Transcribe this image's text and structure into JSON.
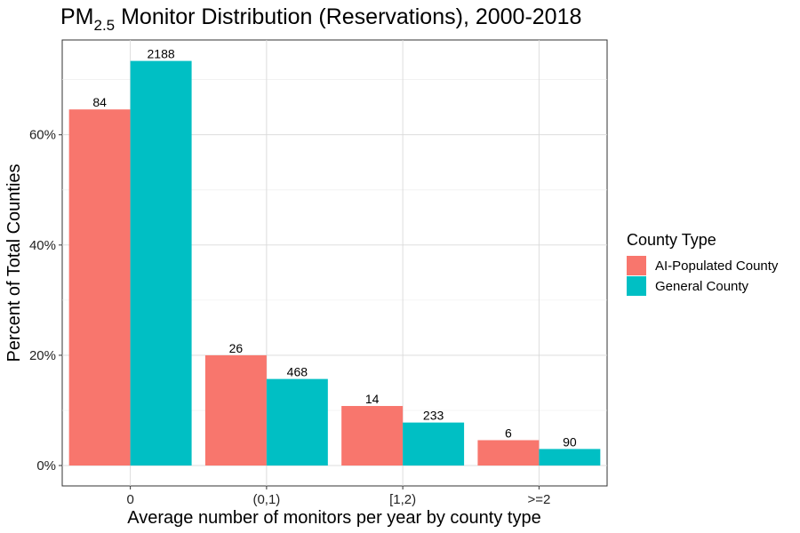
{
  "chart_data": {
    "type": "bar",
    "title_prefix": "PM",
    "title_subscript": "2.5",
    "title_suffix": " Monitor Distribution (Reservations), 2000-2018",
    "xlabel": "Average number of monitors per year by county type",
    "ylabel": "Percent of Total Counties",
    "categories": [
      "0",
      "(0,1)",
      "[1,2)",
      ">=2"
    ],
    "y_ticks": [
      {
        "value": 0,
        "label": "0%"
      },
      {
        "value": 20,
        "label": "20%"
      },
      {
        "value": 40,
        "label": "40%"
      },
      {
        "value": 60,
        "label": "60%"
      }
    ],
    "ylim": [
      -3.7,
      77.2
    ],
    "grid": true,
    "legend": {
      "title": "County Type",
      "placement": "right"
    },
    "series": [
      {
        "name": "AI-Populated County",
        "color": "#F8766D",
        "values": [
          64.6,
          20.0,
          10.8,
          4.6
        ],
        "labels": [
          "84",
          "26",
          "14",
          "6"
        ]
      },
      {
        "name": "General County",
        "color": "#00BFC4",
        "values": [
          73.4,
          15.7,
          7.8,
          3.0
        ],
        "labels": [
          "2188",
          "468",
          "233",
          "90"
        ]
      }
    ]
  }
}
